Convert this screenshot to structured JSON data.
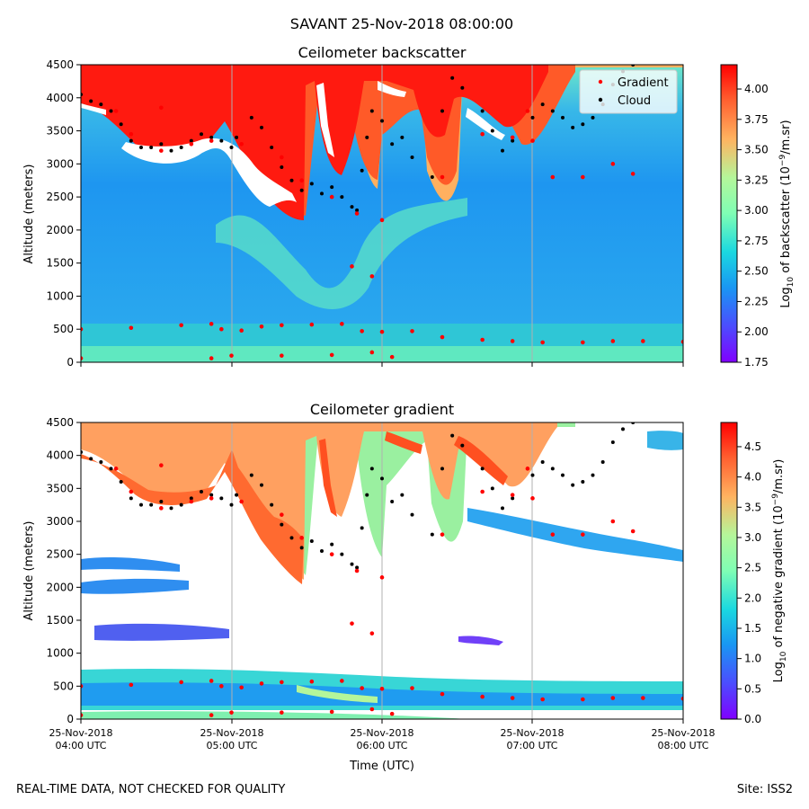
{
  "figure": {
    "suptitle": "SAVANT 25-Nov-2018 08:00:00",
    "footer_left": "REAL-TIME DATA, NOT CHECKED FOR QUALITY",
    "footer_right": "Site: ISS2"
  },
  "chart_data": [
    {
      "type": "heatmap",
      "title": "Ceilometer backscatter",
      "xlabel": "",
      "ylabel": "Altitude (meters)",
      "xlim": [
        "2018-11-25T04:00Z",
        "2018-11-25T08:00Z"
      ],
      "ylim": [
        0,
        4500
      ],
      "yticks": [
        0,
        500,
        1000,
        1500,
        2000,
        2500,
        3000,
        3500,
        4000,
        4500
      ],
      "xgrid": true,
      "colorbar": {
        "label_prefix": "Log",
        "label_sub": "10",
        "label_rest": " of backscatter (10",
        "label_sup": "−9",
        "label_end": "/m.sr)",
        "range": [
          1.75,
          4.2
        ],
        "ticks": [
          "1.75",
          "2.00",
          "2.25",
          "2.50",
          "2.75",
          "3.00",
          "3.25",
          "3.50",
          "3.75",
          "4.00"
        ],
        "colormap": "rainbow"
      },
      "legend": {
        "placement": "top-right",
        "entries": [
          {
            "label": "Gradient",
            "color": "#ff0000"
          },
          {
            "label": "Cloud",
            "color": "#000000"
          }
        ]
      },
      "series": [
        {
          "name": "Cloud",
          "color": "#000000",
          "points": [
            [
              0.0,
              4050
            ],
            [
              0.1,
              3950
            ],
            [
              0.2,
              3900
            ],
            [
              0.3,
              3800
            ],
            [
              0.4,
              3600
            ],
            [
              0.5,
              3350
            ],
            [
              0.6,
              3250
            ],
            [
              0.7,
              3250
            ],
            [
              0.8,
              3300
            ],
            [
              0.9,
              3200
            ],
            [
              1.0,
              3250
            ],
            [
              1.1,
              3350
            ],
            [
              1.2,
              3450
            ],
            [
              1.3,
              3400
            ],
            [
              1.4,
              3350
            ],
            [
              1.5,
              3250
            ],
            [
              1.55,
              3400
            ],
            [
              1.7,
              3700
            ],
            [
              1.8,
              3550
            ],
            [
              1.9,
              3250
            ],
            [
              2.0,
              2950
            ],
            [
              2.1,
              2750
            ],
            [
              2.2,
              2600
            ],
            [
              2.3,
              2700
            ],
            [
              2.4,
              2550
            ],
            [
              2.5,
              2650
            ],
            [
              2.6,
              2500
            ],
            [
              2.7,
              2350
            ],
            [
              2.75,
              2300
            ],
            [
              2.8,
              2900
            ],
            [
              2.85,
              3400
            ],
            [
              2.9,
              3800
            ],
            [
              3.0,
              3650
            ],
            [
              3.1,
              3300
            ],
            [
              3.2,
              3400
            ],
            [
              3.3,
              3100
            ],
            [
              3.5,
              2800
            ],
            [
              3.6,
              3800
            ],
            [
              3.7,
              4300
            ],
            [
              3.8,
              4150
            ],
            [
              4.0,
              3800
            ],
            [
              4.1,
              3500
            ],
            [
              4.2,
              3200
            ],
            [
              4.3,
              3350
            ],
            [
              4.5,
              3700
            ],
            [
              4.6,
              3900
            ],
            [
              4.7,
              3800
            ],
            [
              4.8,
              3700
            ],
            [
              4.9,
              3550
            ],
            [
              5.0,
              3600
            ],
            [
              5.1,
              3700
            ],
            [
              5.2,
              3900
            ],
            [
              5.3,
              4200
            ],
            [
              5.4,
              4400
            ],
            [
              5.5,
              4500
            ]
          ]
        },
        {
          "name": "Gradient",
          "color": "#ff0000",
          "points": [
            [
              0.0,
              500
            ],
            [
              0.5,
              520
            ],
            [
              1.0,
              560
            ],
            [
              1.3,
              580
            ],
            [
              1.4,
              500
            ],
            [
              1.6,
              480
            ],
            [
              1.8,
              540
            ],
            [
              2.0,
              560
            ],
            [
              2.3,
              570
            ],
            [
              2.6,
              580
            ],
            [
              2.8,
              470
            ],
            [
              3.0,
              460
            ],
            [
              3.3,
              470
            ],
            [
              3.6,
              380
            ],
            [
              4.0,
              340
            ],
            [
              4.3,
              320
            ],
            [
              4.6,
              300
            ],
            [
              5.0,
              300
            ],
            [
              5.3,
              320
            ],
            [
              5.6,
              320
            ],
            [
              6.0,
              310
            ],
            [
              0.0,
              60
            ],
            [
              1.3,
              60
            ],
            [
              1.5,
              100
            ],
            [
              2.0,
              100
            ],
            [
              2.5,
              110
            ],
            [
              2.9,
              150
            ],
            [
              3.1,
              80
            ],
            [
              0.35,
              3800
            ],
            [
              0.5,
              3450
            ],
            [
              0.8,
              3200
            ],
            [
              1.1,
              3300
            ],
            [
              1.3,
              3350
            ],
            [
              1.6,
              3300
            ],
            [
              2.0,
              3100
            ],
            [
              2.2,
              2750
            ],
            [
              2.5,
              2500
            ],
            [
              2.75,
              2250
            ],
            [
              2.7,
              1450
            ],
            [
              2.9,
              1300
            ],
            [
              3.0,
              2150
            ],
            [
              4.0,
              3450
            ],
            [
              4.3,
              3400
            ],
            [
              4.5,
              3350
            ],
            [
              4.7,
              2800
            ],
            [
              5.0,
              2800
            ],
            [
              5.3,
              3000
            ],
            [
              5.5,
              2850
            ],
            [
              4.45,
              3800
            ],
            [
              0.8,
              3850
            ],
            [
              3.6,
              2800
            ]
          ]
        }
      ]
    },
    {
      "type": "heatmap",
      "title": "Ceilometer gradient",
      "xlabel": "Time (UTC)",
      "ylabel": "Altitude (meters)",
      "xlim": [
        "2018-11-25T04:00Z",
        "2018-11-25T08:00Z"
      ],
      "ylim": [
        0,
        4500
      ],
      "yticks": [
        0,
        500,
        1000,
        1500,
        2000,
        2500,
        3000,
        3500,
        4000,
        4500
      ],
      "xgrid": true,
      "xticks": [
        {
          "line1": "25-Nov-2018",
          "line2": "04:00 UTC"
        },
        {
          "line1": "25-Nov-2018",
          "line2": "05:00 UTC"
        },
        {
          "line1": "25-Nov-2018",
          "line2": "06:00 UTC"
        },
        {
          "line1": "25-Nov-2018",
          "line2": "07:00 UTC"
        },
        {
          "line1": "25-Nov-2018",
          "line2": "08:00 UTC"
        }
      ],
      "colorbar": {
        "label_prefix": "Log",
        "label_sub": "10",
        "label_rest": " of negative gradient (10",
        "label_sup": "−9",
        "label_end": "/m.sr)",
        "range": [
          0.0,
          4.9
        ],
        "ticks": [
          "0.0",
          "0.5",
          "1.0",
          "1.5",
          "2.0",
          "2.5",
          "3.0",
          "3.5",
          "4.0",
          "4.5"
        ],
        "colormap": "rainbow"
      }
    }
  ]
}
